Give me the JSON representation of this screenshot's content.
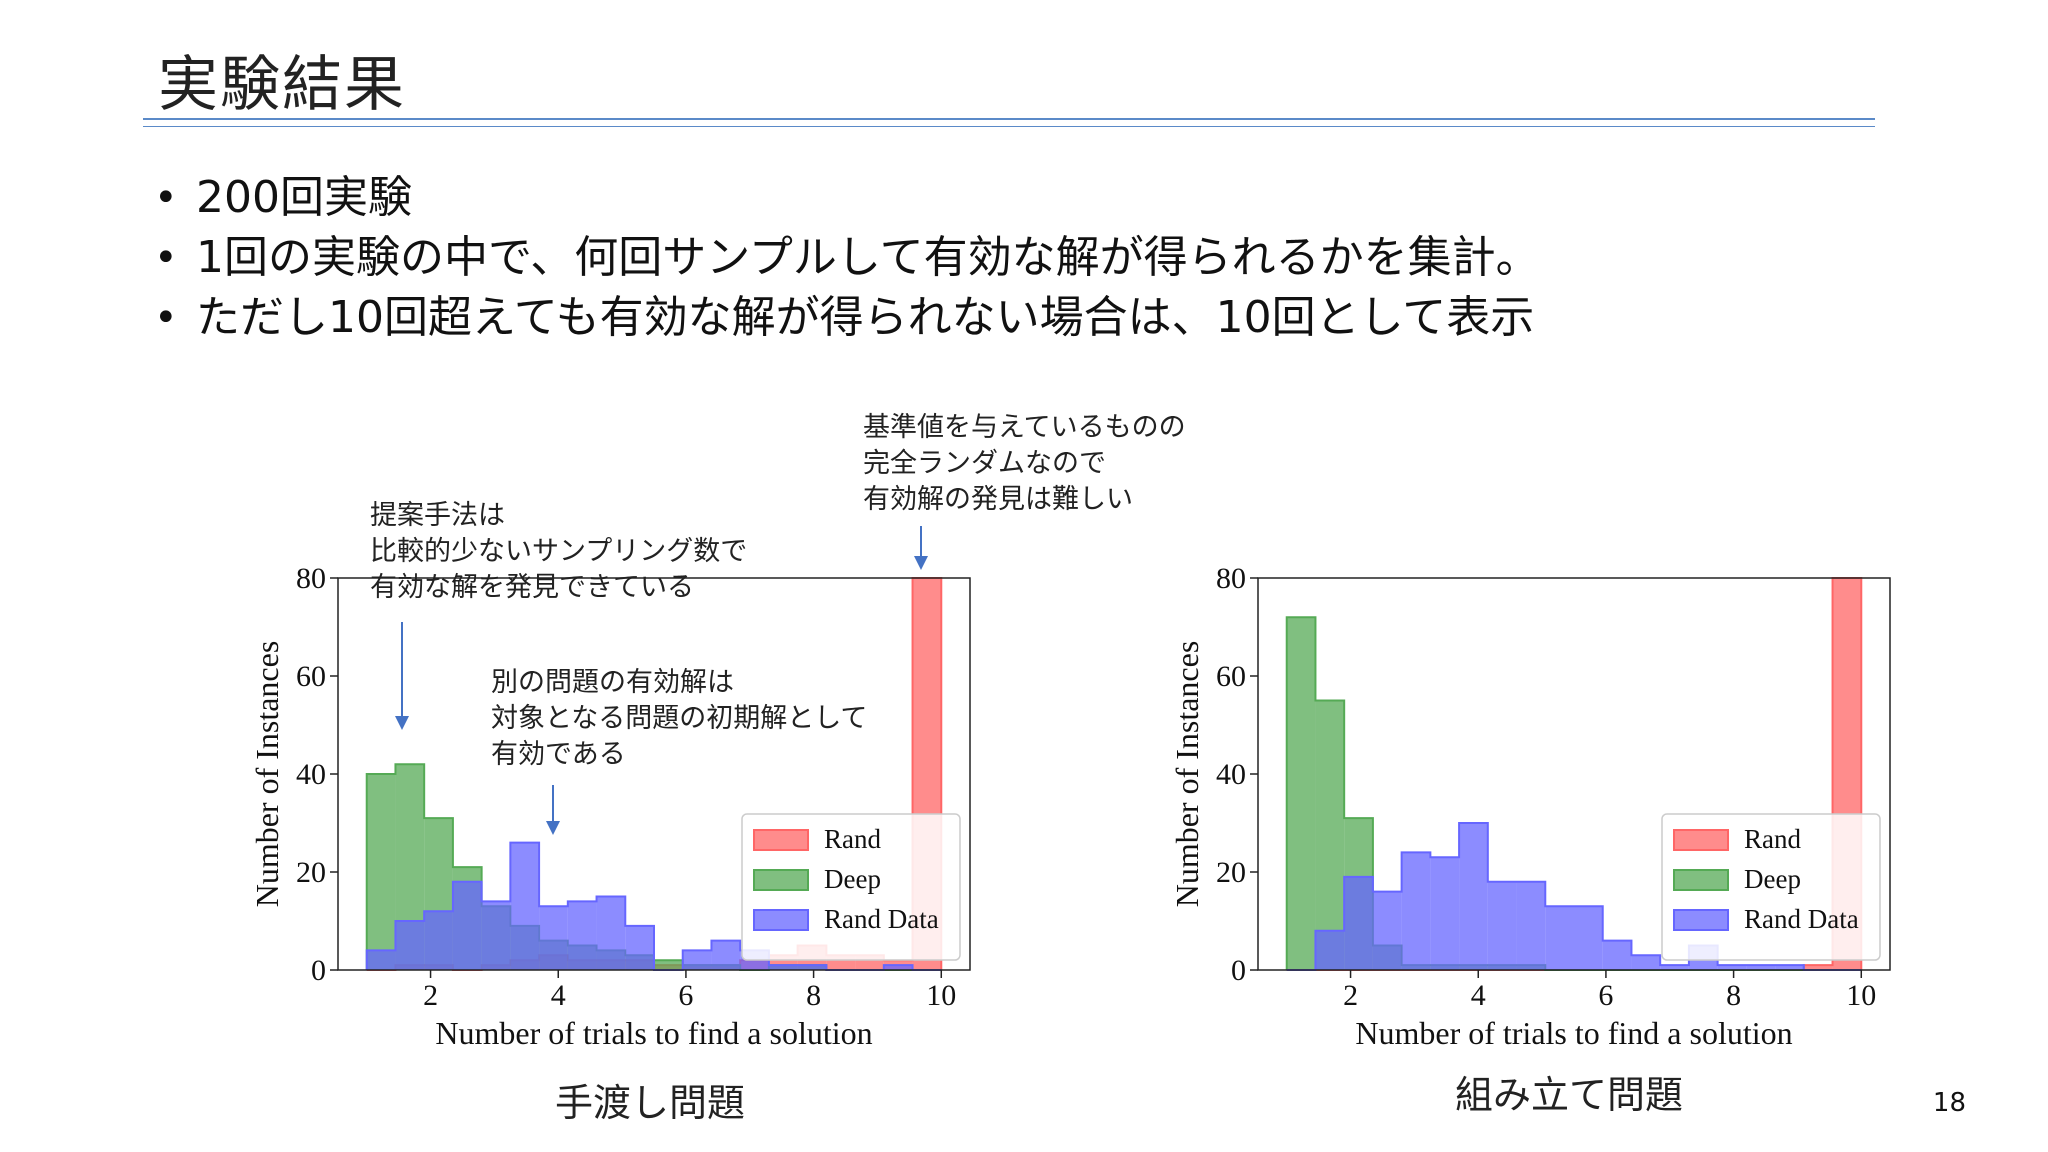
{
  "slide": {
    "title": "実験結果",
    "bullets": [
      "200回実験",
      "1回の実験の中で、何回サンプルして有効な解が得られるかを集計。",
      "ただし10回超えても有効な解が得られない場合は、10回として表示"
    ],
    "page_number": "18"
  },
  "annotations": {
    "proposed": [
      "提案手法は",
      "比較的少ないサンプリング数で",
      "有効な解を発見できている"
    ],
    "other_problem": [
      "別の問題の有効解は",
      "対象となる問題の初期解として",
      "有効である"
    ],
    "baseline": [
      "基準値を与えているものの",
      "完全ランダムなので",
      "有効解の発見は難しい"
    ]
  },
  "colors": {
    "Rand": "#ff6666",
    "Deep": "#55aa55",
    "Rand Data": "#6666ff",
    "annotation_arrow": "#4472c4"
  },
  "chart_data": [
    {
      "type": "histogram",
      "caption": "手渡し問題",
      "xlabel": "Number of trials to find a solution",
      "ylabel": "Number of Instances",
      "xlim": [
        0.55,
        10.45
      ],
      "ylim": [
        0,
        80
      ],
      "xticks": [
        2,
        4,
        6,
        8,
        10
      ],
      "yticks": [
        0,
        20,
        40,
        60,
        80
      ],
      "legend_position": "lower-right",
      "bin_edges": [
        1.0,
        1.45,
        1.9,
        2.35,
        2.8,
        3.25,
        3.7,
        4.15,
        4.6,
        5.05,
        5.5,
        5.95,
        6.4,
        6.85,
        7.3,
        7.75,
        8.2,
        8.65,
        9.1,
        9.55,
        10.0
      ],
      "series": [
        {
          "name": "Rand",
          "values": [
            0,
            1,
            1,
            0,
            1,
            2,
            3,
            2,
            2,
            2,
            1,
            1,
            1,
            2,
            3,
            5,
            3,
            3,
            2,
            80
          ]
        },
        {
          "name": "Deep",
          "values": [
            40,
            42,
            31,
            21,
            13,
            9,
            6,
            5,
            4,
            3,
            2,
            1,
            1,
            0,
            1,
            1,
            0,
            0,
            0,
            0
          ]
        },
        {
          "name": "Rand Data",
          "values": [
            4,
            10,
            12,
            18,
            14,
            26,
            13,
            14,
            15,
            9,
            0,
            4,
            6,
            4,
            1,
            1,
            0,
            0,
            1,
            0
          ]
        }
      ]
    },
    {
      "type": "histogram",
      "caption": "組み立て問題",
      "xlabel": "Number of trials to find a solution",
      "ylabel": "Number of Instances",
      "xlim": [
        0.55,
        10.45
      ],
      "ylim": [
        0,
        80
      ],
      "xticks": [
        2,
        4,
        6,
        8,
        10
      ],
      "yticks": [
        0,
        20,
        40,
        60,
        80
      ],
      "legend_position": "lower-right",
      "bin_edges": [
        1.0,
        1.45,
        1.9,
        2.35,
        2.8,
        3.25,
        3.7,
        4.15,
        4.6,
        5.05,
        5.5,
        5.95,
        6.4,
        6.85,
        7.3,
        7.75,
        8.2,
        8.65,
        9.1,
        9.55,
        10.0
      ],
      "series": [
        {
          "name": "Rand",
          "values": [
            0,
            0,
            0,
            0,
            0,
            0,
            0,
            0,
            0,
            0,
            0,
            0,
            0,
            0,
            0,
            0,
            0,
            0,
            1,
            80
          ]
        },
        {
          "name": "Deep",
          "values": [
            72,
            55,
            31,
            5,
            1,
            1,
            1,
            1,
            1,
            0,
            0,
            0,
            0,
            0,
            0,
            0,
            0,
            0,
            0,
            0
          ]
        },
        {
          "name": "Rand Data",
          "values": [
            0,
            8,
            19,
            16,
            24,
            23,
            30,
            18,
            18,
            13,
            13,
            6,
            3,
            1,
            5,
            1,
            1,
            1,
            0,
            0
          ]
        }
      ]
    }
  ]
}
